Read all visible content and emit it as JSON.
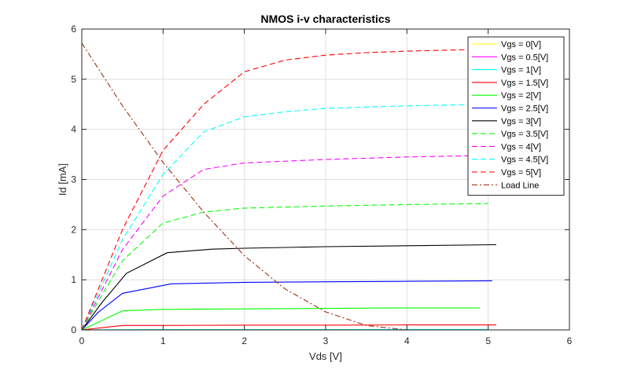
{
  "chart_data": {
    "type": "line",
    "title": "NMOS i-v characteristics",
    "xlabel": "Vds [V]",
    "ylabel": "Id [mA]",
    "xlim": [
      0,
      6
    ],
    "ylim": [
      0,
      6
    ],
    "xticks": [
      "0",
      "1",
      "2",
      "3",
      "4",
      "5",
      "6"
    ],
    "yticks": [
      "0",
      "1",
      "2",
      "3",
      "4",
      "5",
      "6"
    ],
    "grid": true,
    "legend_position": "top-right",
    "series": [
      {
        "name": "Vgs = 0[V]",
        "color": "#FFFF00",
        "dash": "solid",
        "x": [
          0,
          5.0
        ],
        "y": [
          0,
          0
        ]
      },
      {
        "name": "Vgs = 0.5[V]",
        "color": "#FF00FF",
        "dash": "solid",
        "x": [
          0,
          5.0
        ],
        "y": [
          0,
          0
        ]
      },
      {
        "name": "Vgs = 1[V]",
        "color": "#00FFFF",
        "dash": "solid",
        "x": [
          0,
          0.5,
          1.0,
          2.0,
          3.0,
          4.0,
          5.0
        ],
        "y": [
          0,
          0.005,
          0.006,
          0.007,
          0.008,
          0.009,
          0.01
        ]
      },
      {
        "name": "Vgs = 1.5[V]",
        "color": "#FF0000",
        "dash": "solid",
        "x": [
          0,
          0.5,
          1.0,
          2.0,
          3.0,
          4.0,
          5.1
        ],
        "y": [
          0,
          0.09,
          0.09,
          0.095,
          0.095,
          0.1,
          0.1
        ]
      },
      {
        "name": "Vgs = 2[V]",
        "color": "#00FF00",
        "dash": "solid",
        "x": [
          0,
          0.5,
          1.0,
          2.0,
          3.0,
          4.0,
          4.9
        ],
        "y": [
          0,
          0.38,
          0.41,
          0.42,
          0.43,
          0.44,
          0.44
        ]
      },
      {
        "name": "Vgs = 2.5[V]",
        "color": "#0000FF",
        "dash": "solid",
        "x": [
          0,
          0.2,
          0.5,
          1.1,
          2.0,
          3.0,
          4.0,
          5.05
        ],
        "y": [
          0,
          0.35,
          0.73,
          0.92,
          0.95,
          0.96,
          0.97,
          0.98
        ]
      },
      {
        "name": "Vgs = 3[V]",
        "color": "#000000",
        "dash": "solid",
        "x": [
          0,
          0.25,
          0.55,
          1.05,
          1.6,
          2.0,
          3.0,
          4.0,
          5.1
        ],
        "y": [
          0,
          0.55,
          1.13,
          1.54,
          1.61,
          1.63,
          1.66,
          1.68,
          1.7
        ]
      },
      {
        "name": "Vgs = 3.5[V]",
        "color": "#00FF00",
        "dash": "dashed",
        "x": [
          0,
          0.25,
          0.5,
          1.0,
          1.5,
          2.0,
          3.0,
          4.0,
          5.0
        ],
        "y": [
          0,
          0.7,
          1.38,
          2.13,
          2.35,
          2.43,
          2.47,
          2.5,
          2.52
        ]
      },
      {
        "name": "Vgs = 4[V]",
        "color": "#FF00FF",
        "dash": "dashed",
        "x": [
          0,
          0.25,
          0.5,
          1.0,
          1.5,
          2.0,
          3.0,
          4.0,
          5.0
        ],
        "y": [
          0,
          0.8,
          1.6,
          2.67,
          3.2,
          3.33,
          3.4,
          3.45,
          3.48
        ]
      },
      {
        "name": "Vgs = 4.5[V]",
        "color": "#00FFFF",
        "dash": "dashed",
        "x": [
          0,
          0.25,
          0.5,
          1.0,
          1.5,
          2.0,
          2.5,
          3.0,
          4.0,
          5.0
        ],
        "y": [
          0,
          0.9,
          1.8,
          3.1,
          3.95,
          4.25,
          4.35,
          4.42,
          4.47,
          4.5
        ]
      },
      {
        "name": "Vgs = 5[V]",
        "color": "#FF0000",
        "dash": "dashed",
        "x": [
          0,
          0.25,
          0.5,
          1.0,
          1.5,
          2.0,
          2.5,
          3.0,
          3.5,
          4.0,
          4.5,
          5.0
        ],
        "y": [
          0,
          1.0,
          2.0,
          3.58,
          4.5,
          5.15,
          5.38,
          5.48,
          5.53,
          5.56,
          5.58,
          5.6
        ]
      },
      {
        "name": "Load Line",
        "color": "#A0300F",
        "dash": "dashdot",
        "x": [
          0,
          0.5,
          1.0,
          1.5,
          2.0,
          2.5,
          3.0,
          3.5,
          4.0
        ],
        "y": [
          5.72,
          4.47,
          3.34,
          2.35,
          1.48,
          0.82,
          0.36,
          0.09,
          0.0
        ]
      }
    ]
  }
}
